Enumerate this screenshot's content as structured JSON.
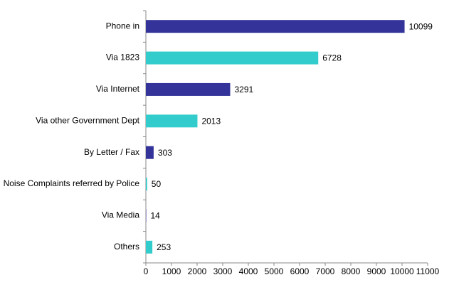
{
  "chart_data": {
    "type": "hbar",
    "categories": [
      "Phone in",
      "Via 1823",
      "Via Internet",
      "Via other Government Dept",
      "By Letter / Fax",
      "Noise Complaints referred by Police",
      "Via Media",
      "Others"
    ],
    "values": [
      10099,
      6728,
      3291,
      2013,
      303,
      50,
      14,
      253
    ],
    "colors": [
      "#333399",
      "#33cccc",
      "#333399",
      "#33cccc",
      "#333399",
      "#33cccc",
      "#333399",
      "#33cccc"
    ],
    "xlim": [
      0,
      11000
    ],
    "xticks": [
      0,
      1000,
      2000,
      3000,
      4000,
      5000,
      6000,
      7000,
      8000,
      9000,
      10000,
      11000
    ],
    "grid": false
  }
}
